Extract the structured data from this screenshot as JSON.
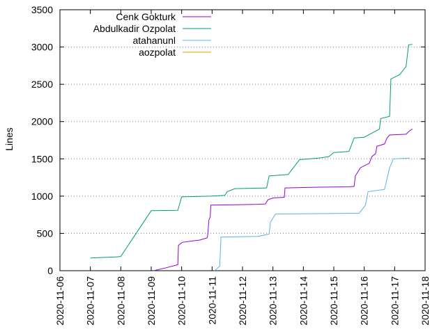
{
  "chart_data": {
    "type": "line",
    "ylabel": "Lines",
    "xlabel": "",
    "title": "",
    "ylim": [
      0,
      3500
    ],
    "xlim": [
      "2020-11-06",
      "2020-11-18"
    ],
    "y_ticks": [
      0,
      500,
      1000,
      1500,
      2000,
      2500,
      3000,
      3500
    ],
    "y_tick_labels": [
      "0",
      "500",
      "1000",
      "1500",
      "2000",
      "2500",
      "3000",
      "3500"
    ],
    "x_ticks": [
      "2020-11-06",
      "2020-11-07",
      "2020-11-08",
      "2020-11-09",
      "2020-11-10",
      "2020-11-11",
      "2020-11-12",
      "2020-11-13",
      "2020-11-14",
      "2020-11-15",
      "2020-11-16",
      "2020-11-17",
      "2020-11-18"
    ],
    "grid": "horizontal-dotted",
    "legend_position": "top-left",
    "series": [
      {
        "name": "Cenk Gokturk",
        "color": "#9400d3",
        "points": [
          [
            "2020-11-09 02:00",
            0
          ],
          [
            "2020-11-09 12:00",
            40
          ],
          [
            "2020-11-09 21:00",
            80
          ],
          [
            "2020-11-09 21:30",
            340
          ],
          [
            "2020-11-09 23:00",
            360
          ],
          [
            "2020-11-10 00:30",
            380
          ],
          [
            "2020-11-10 09:00",
            400
          ],
          [
            "2020-11-10 14:00",
            410
          ],
          [
            "2020-11-10 20:00",
            440
          ],
          [
            "2020-11-10 20:30",
            470
          ],
          [
            "2020-11-10 21:30",
            680
          ],
          [
            "2020-11-10 22:30",
            720
          ],
          [
            "2020-11-10 23:00",
            880
          ],
          [
            "2020-11-11 20:00",
            885
          ],
          [
            "2020-11-12 12:00",
            890
          ],
          [
            "2020-11-12 18:00",
            895
          ],
          [
            "2020-11-12 20:00",
            950
          ],
          [
            "2020-11-13 00:00",
            975
          ],
          [
            "2020-11-13 09:00",
            985
          ],
          [
            "2020-11-13 09:30",
            1110
          ],
          [
            "2020-11-14 12:00",
            1120
          ],
          [
            "2020-11-15 12:00",
            1125
          ],
          [
            "2020-11-15 16:00",
            1130
          ],
          [
            "2020-11-15 17:00",
            1270
          ],
          [
            "2020-11-15 21:00",
            1380
          ],
          [
            "2020-11-16 04:00",
            1440
          ],
          [
            "2020-11-16 06:00",
            1530
          ],
          [
            "2020-11-16 09:00",
            1570
          ],
          [
            "2020-11-16 10:00",
            1670
          ],
          [
            "2020-11-16 16:00",
            1700
          ],
          [
            "2020-11-16 18:00",
            1780
          ],
          [
            "2020-11-16 20:00",
            1820
          ],
          [
            "2020-11-17 09:00",
            1830
          ],
          [
            "2020-11-17 12:00",
            1880
          ],
          [
            "2020-11-17 14:00",
            1900
          ]
        ]
      },
      {
        "name": "Abdulkadir Ozpolat",
        "color": "#009e73",
        "points": [
          [
            "2020-11-07 00:00",
            170
          ],
          [
            "2020-11-07 20:00",
            185
          ],
          [
            "2020-11-08 00:00",
            190
          ],
          [
            "2020-11-09 00:00",
            805
          ],
          [
            "2020-11-09 21:00",
            810
          ],
          [
            "2020-11-10 00:00",
            990
          ],
          [
            "2020-11-10 23:00",
            1000
          ],
          [
            "2020-11-11 10:00",
            1010
          ],
          [
            "2020-11-11 12:00",
            1060
          ],
          [
            "2020-11-11 18:00",
            1100
          ],
          [
            "2020-11-12 19:00",
            1110
          ],
          [
            "2020-11-12 21:00",
            1270
          ],
          [
            "2020-11-13 12:00",
            1290
          ],
          [
            "2020-11-13 21:00",
            1490
          ],
          [
            "2020-11-14 12:00",
            1510
          ],
          [
            "2020-11-14 20:00",
            1530
          ],
          [
            "2020-11-15 00:00",
            1585
          ],
          [
            "2020-11-15 12:00",
            1600
          ],
          [
            "2020-11-15 16:00",
            1780
          ],
          [
            "2020-11-16 00:00",
            1790
          ],
          [
            "2020-11-16 12:00",
            1900
          ],
          [
            "2020-11-16 13:00",
            2040
          ],
          [
            "2020-11-16 20:00",
            2070
          ],
          [
            "2020-11-16 21:00",
            2570
          ],
          [
            "2020-11-17 04:00",
            2630
          ],
          [
            "2020-11-17 09:00",
            2740
          ],
          [
            "2020-11-17 11:00",
            3030
          ],
          [
            "2020-11-17 14:00",
            3035
          ]
        ]
      },
      {
        "name": "atahanunl",
        "color": "#56b4e9",
        "points": [
          [
            "2020-11-11 02:00",
            0
          ],
          [
            "2020-11-11 06:00",
            60
          ],
          [
            "2020-11-11 07:00",
            450
          ],
          [
            "2020-11-12 12:00",
            460
          ],
          [
            "2020-11-12 21:00",
            490
          ],
          [
            "2020-11-12 22:00",
            650
          ],
          [
            "2020-11-13 02:00",
            760
          ],
          [
            "2020-11-15 20:00",
            770
          ],
          [
            "2020-11-16 01:00",
            880
          ],
          [
            "2020-11-16 03:00",
            1060
          ],
          [
            "2020-11-16 16:00",
            1090
          ],
          [
            "2020-11-16 20:00",
            1380
          ],
          [
            "2020-11-16 23:00",
            1500
          ],
          [
            "2020-11-17 12:00",
            1510
          ]
        ]
      },
      {
        "name": "aozpolat",
        "color": "#e69f00",
        "points": []
      }
    ]
  }
}
